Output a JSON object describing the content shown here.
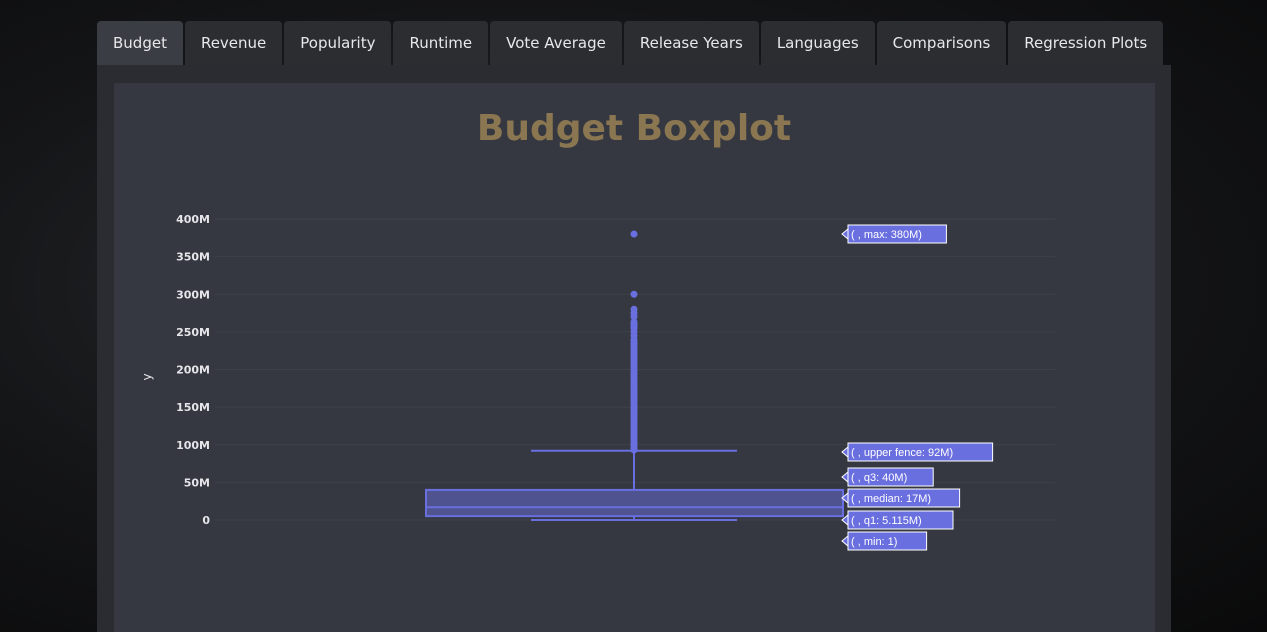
{
  "tabs": [
    {
      "label": "Budget",
      "active": true
    },
    {
      "label": "Revenue",
      "active": false
    },
    {
      "label": "Popularity",
      "active": false
    },
    {
      "label": "Runtime",
      "active": false
    },
    {
      "label": "Vote Average",
      "active": false
    },
    {
      "label": "Release Years",
      "active": false
    },
    {
      "label": "Languages",
      "active": false
    },
    {
      "label": "Comparisons",
      "active": false
    },
    {
      "label": "Regression Plots",
      "active": false
    }
  ],
  "colors": {
    "title": "#8a7650",
    "box": "#6a6fe0",
    "box_fill": "rgba(106,111,224,0.5)",
    "axis_text": "#e6e6ea",
    "grid": "#3e414a",
    "label_bg": "#6a6fe0"
  },
  "chart_data": {
    "type": "box",
    "title": "Budget Boxplot",
    "xlabel": "",
    "ylabel": "y",
    "ylim": [
      -5000000,
      410000000
    ],
    "yticks": [
      0,
      50000000,
      100000000,
      150000000,
      200000000,
      250000000,
      300000000,
      350000000,
      400000000
    ],
    "ytick_labels": [
      "0",
      "50M",
      "100M",
      "150M",
      "200M",
      "250M",
      "300M",
      "350M",
      "400M"
    ],
    "stats": {
      "min": 1,
      "q1": 5115000,
      "median": 17000000,
      "q3": 40000000,
      "upper_fence": 92000000,
      "max": 380000000
    },
    "outliers": [
      93000000,
      95000000,
      97000000,
      100000000,
      103000000,
      105000000,
      108000000,
      110000000,
      113000000,
      115000000,
      118000000,
      120000000,
      123000000,
      125000000,
      128000000,
      130000000,
      133000000,
      135000000,
      138000000,
      140000000,
      143000000,
      145000000,
      148000000,
      150000000,
      153000000,
      155000000,
      158000000,
      160000000,
      163000000,
      165000000,
      168000000,
      170000000,
      173000000,
      175000000,
      178000000,
      180000000,
      183000000,
      185000000,
      188000000,
      190000000,
      193000000,
      195000000,
      198000000,
      200000000,
      203000000,
      205000000,
      208000000,
      210000000,
      213000000,
      215000000,
      218000000,
      220000000,
      223000000,
      225000000,
      228000000,
      230000000,
      233000000,
      235000000,
      238000000,
      240000000,
      245000000,
      250000000,
      255000000,
      258000000,
      260000000,
      263000000,
      270000000,
      275000000,
      280000000,
      300000000,
      380000000
    ],
    "hover_labels": [
      {
        "key": "max",
        "text": "( , max: 380M)"
      },
      {
        "key": "upper_fence",
        "text": "( , upper fence: 92M)"
      },
      {
        "key": "q3",
        "text": "( , q3: 40M)"
      },
      {
        "key": "median",
        "text": "( , median: 17M)"
      },
      {
        "key": "q1",
        "text": "( , q1: 5.115M)"
      },
      {
        "key": "min",
        "text": "( , min: 1)"
      }
    ]
  }
}
